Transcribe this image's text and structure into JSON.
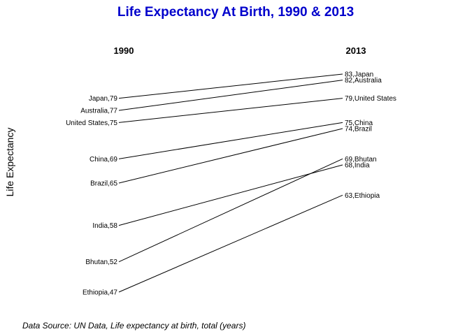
{
  "chart_data": {
    "type": "slope",
    "title": "Life Expectancy At Birth, 1990 & 2013",
    "ylabel": "Life Expectancy",
    "columns": [
      "1990",
      "2013"
    ],
    "source": "Data Source: UN Data, Life expectancy at birth, total (years)",
    "ylim": [
      47,
      83
    ],
    "series": [
      {
        "name": "Japan",
        "values": [
          79,
          83
        ],
        "labels": [
          "Japan,79",
          "83,Japan"
        ]
      },
      {
        "name": "Australia",
        "values": [
          77,
          82
        ],
        "labels": [
          "Australia,77",
          "82,Australia"
        ]
      },
      {
        "name": "United States",
        "values": [
          75,
          79
        ],
        "labels": [
          "United States,75",
          "79,United States"
        ]
      },
      {
        "name": "China",
        "values": [
          69,
          75
        ],
        "labels": [
          "China,69",
          "75,China"
        ]
      },
      {
        "name": "Brazil",
        "values": [
          65,
          74
        ],
        "labels": [
          "Brazil,65",
          "74,Brazil"
        ]
      },
      {
        "name": "India",
        "values": [
          58,
          68
        ],
        "labels": [
          "India,58",
          "68,India"
        ]
      },
      {
        "name": "Bhutan",
        "values": [
          52,
          69
        ],
        "labels": [
          "Bhutan,52",
          "69,Bhutan"
        ]
      },
      {
        "name": "Ethiopia",
        "values": [
          47,
          63
        ],
        "labels": [
          "Ethiopia,47",
          "63,Ethiopia"
        ]
      }
    ]
  }
}
